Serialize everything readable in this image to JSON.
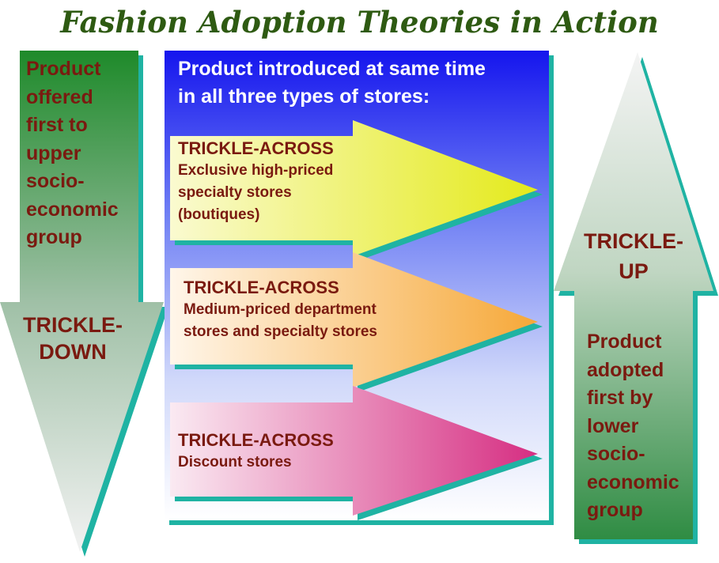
{
  "title": "Fashion Adoption Theories in Action",
  "left": {
    "text": [
      "Product",
      "offered",
      "first to",
      "upper",
      "socio-",
      "economic",
      "group"
    ],
    "label": [
      "TRICKLE-",
      "DOWN"
    ]
  },
  "center": {
    "header": [
      "Product introduced at same time",
      "in all three types of stores:"
    ],
    "arrows": [
      {
        "title": "TRICKLE-ACROSS",
        "desc": [
          "Exclusive high-priced",
          "specialty stores",
          "(boutiques)"
        ]
      },
      {
        "title": "TRICKLE-ACROSS",
        "desc": [
          "Medium-priced department",
          "stores and specialty stores"
        ]
      },
      {
        "title": "TRICKLE-ACROSS",
        "desc": [
          "Discount stores"
        ]
      }
    ]
  },
  "right": {
    "label": [
      "TRICKLE-",
      "UP"
    ],
    "text": [
      "Product",
      "adopted",
      "first by",
      "lower",
      "socio-",
      "economic",
      "group"
    ]
  },
  "colors": {
    "title": "#2e5a12",
    "label_text": "#7a1a10",
    "shadow": "#1fb3a3",
    "header_text": "#ffffff"
  }
}
